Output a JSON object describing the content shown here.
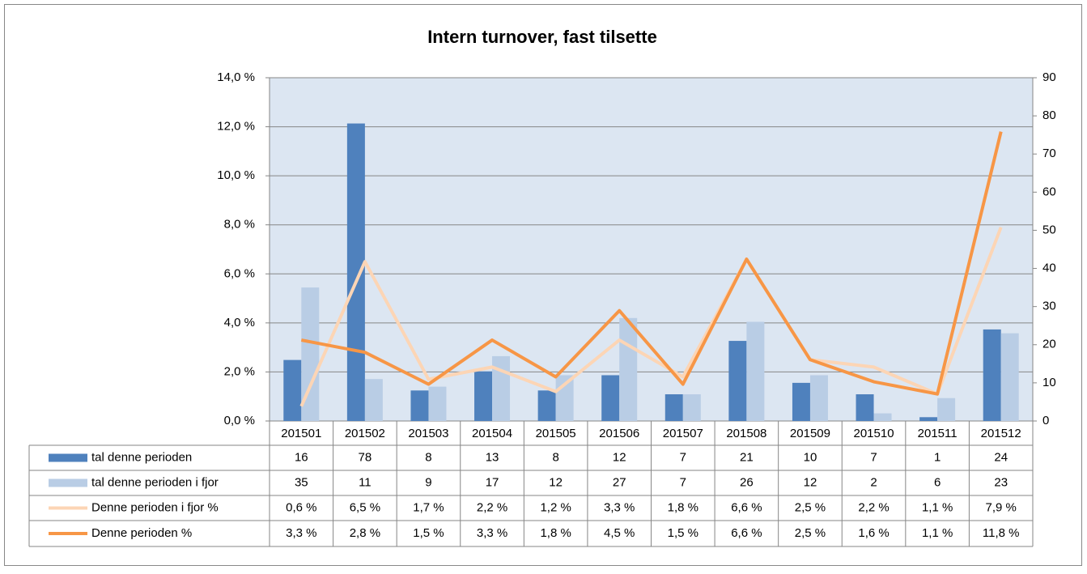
{
  "chart_data": {
    "type": "bar",
    "title": "Intern turnover, fast tilsette",
    "categories": [
      "201501",
      "201502",
      "201503",
      "201504",
      "201505",
      "201506",
      "201507",
      "201508",
      "201509",
      "201510",
      "201511",
      "201512"
    ],
    "series": [
      {
        "name": "tal denne perioden",
        "color": "#4f81bd",
        "axis": "y2",
        "type": "bar",
        "values": [
          16,
          78,
          8,
          13,
          8,
          12,
          7,
          21,
          10,
          7,
          1,
          24
        ]
      },
      {
        "name": "tal denne perioden i fjor",
        "color": "#b9cde5",
        "axis": "y2",
        "type": "bar",
        "values": [
          35,
          11,
          9,
          17,
          12,
          27,
          7,
          26,
          12,
          2,
          6,
          23
        ]
      },
      {
        "name": "Denne perioden i fjor %",
        "color": "#fcd5b5",
        "axis": "y",
        "type": "line",
        "values": [
          0.6,
          6.5,
          1.7,
          2.2,
          1.2,
          3.3,
          1.8,
          6.6,
          2.5,
          2.2,
          1.1,
          7.9
        ],
        "value_labels": [
          "0,6 %",
          "6,5 %",
          "1,7 %",
          "2,2 %",
          "1,2 %",
          "3,3 %",
          "1,8 %",
          "6,6 %",
          "2,5 %",
          "2,2 %",
          "1,1 %",
          "7,9 %"
        ]
      },
      {
        "name": "Denne perioden %",
        "color": "#f79646",
        "axis": "y",
        "type": "line",
        "values": [
          3.3,
          2.8,
          1.5,
          3.3,
          1.8,
          4.5,
          1.5,
          6.6,
          2.5,
          1.6,
          1.1,
          11.8
        ],
        "value_labels": [
          "3,3 %",
          "2,8 %",
          "1,5 %",
          "3,3 %",
          "1,8 %",
          "4,5 %",
          "1,5 %",
          "6,6 %",
          "2,5 %",
          "1,6 %",
          "1,1 %",
          "11,8 %"
        ]
      }
    ],
    "ylim": [
      0,
      14
    ],
    "yticks": [
      {
        "value": 0,
        "label": "0,0 %"
      },
      {
        "value": 2,
        "label": "2,0 %"
      },
      {
        "value": 4,
        "label": "4,0 %"
      },
      {
        "value": 6,
        "label": "6,0 %"
      },
      {
        "value": 8,
        "label": "8,0 %"
      },
      {
        "value": 10,
        "label": "10,0 %"
      },
      {
        "value": 12,
        "label": "12,0 %"
      },
      {
        "value": 14,
        "label": "14,0 %"
      }
    ],
    "y2lim": [
      0,
      90
    ],
    "y2ticks": [
      0,
      10,
      20,
      30,
      40,
      50,
      60,
      70,
      80,
      90
    ],
    "grid": true
  }
}
